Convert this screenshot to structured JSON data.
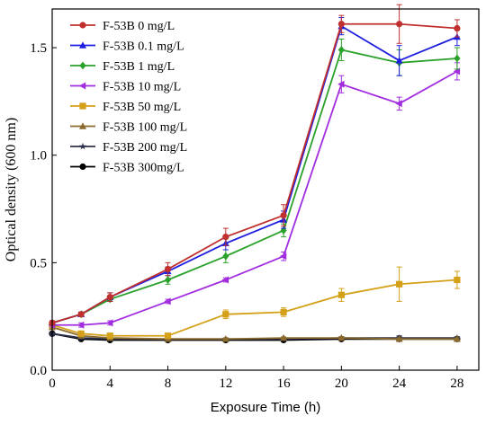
{
  "chart_data": {
    "type": "line",
    "xlabel": "Exposure Time (h)",
    "ylabel": "Optical density (600 nm)",
    "xlim": [
      0,
      29.5
    ],
    "ylim": [
      0,
      1.68
    ],
    "xticks": [
      0,
      4,
      8,
      12,
      16,
      20,
      24,
      28
    ],
    "yticks": [
      0.0,
      0.5,
      1.0,
      1.5
    ],
    "ytick_labels": [
      "0.0",
      "0.5",
      "1.0",
      "1.5"
    ],
    "x": [
      0,
      2,
      4,
      8,
      12,
      16,
      20,
      24,
      28
    ],
    "legend_position": "top-left",
    "grid": false,
    "series": [
      {
        "name": "F-53B 0 mg/L",
        "color": "#c0302f",
        "marker": "circle",
        "values": [
          0.22,
          0.26,
          0.34,
          0.47,
          0.62,
          0.72,
          1.61,
          1.61,
          1.59
        ],
        "errors": [
          0.01,
          0.01,
          0.02,
          0.03,
          0.04,
          0.05,
          0.04,
          0.09,
          0.04
        ]
      },
      {
        "name": "F-53B 0.1 mg/L",
        "color": "#1f1fe0",
        "marker": "triangle",
        "values": [
          0.22,
          0.26,
          0.34,
          0.46,
          0.59,
          0.7,
          1.6,
          1.44,
          1.55
        ],
        "errors": [
          0.01,
          0.01,
          0.02,
          0.02,
          0.03,
          0.04,
          0.04,
          0.07,
          0.04
        ]
      },
      {
        "name": "F-53B 1 mg/L",
        "color": "#2aa12a",
        "marker": "diamond",
        "values": [
          0.22,
          0.26,
          0.33,
          0.42,
          0.53,
          0.65,
          1.49,
          1.43,
          1.45
        ],
        "errors": [
          0.01,
          0.01,
          0.01,
          0.02,
          0.03,
          0.03,
          0.05,
          0.06,
          0.05
        ]
      },
      {
        "name": "F-53B 10 mg/L",
        "color": "#a22de0",
        "marker": "triangle-left",
        "values": [
          0.21,
          0.21,
          0.22,
          0.32,
          0.42,
          0.53,
          1.33,
          1.24,
          1.39
        ],
        "errors": [
          0.01,
          0.01,
          0.01,
          0.01,
          0.01,
          0.02,
          0.04,
          0.03,
          0.04
        ]
      },
      {
        "name": "F-53B 50 mg/L",
        "color": "#d4a017",
        "marker": "square",
        "values": [
          0.21,
          0.17,
          0.16,
          0.16,
          0.26,
          0.27,
          0.35,
          0.4,
          0.42
        ],
        "errors": [
          0.01,
          0.01,
          0.01,
          0.01,
          0.02,
          0.02,
          0.03,
          0.08,
          0.04
        ]
      },
      {
        "name": "F-53B 100 mg/L",
        "color": "#8b6a2e",
        "marker": "triangle-up",
        "values": [
          0.2,
          0.16,
          0.15,
          0.145,
          0.145,
          0.15,
          0.15,
          0.145,
          0.145
        ],
        "errors": [
          0.01,
          0.005,
          0.005,
          0.005,
          0.005,
          0.005,
          0.005,
          0.005,
          0.005
        ]
      },
      {
        "name": "F-53B 200 mg/L",
        "color": "#2b2f4a",
        "marker": "star",
        "values": [
          0.17,
          0.15,
          0.145,
          0.145,
          0.145,
          0.145,
          0.15,
          0.15,
          0.15
        ],
        "errors": [
          0.005,
          0.005,
          0.005,
          0.005,
          0.005,
          0.005,
          0.005,
          0.01,
          0.005
        ]
      },
      {
        "name": "F-53B 300mg/L",
        "color": "#000000",
        "marker": "circle",
        "values": [
          0.17,
          0.145,
          0.14,
          0.14,
          0.14,
          0.14,
          0.145,
          0.145,
          0.145
        ],
        "errors": [
          0.005,
          0.005,
          0.005,
          0.005,
          0.005,
          0.005,
          0.005,
          0.005,
          0.005
        ]
      }
    ]
  }
}
